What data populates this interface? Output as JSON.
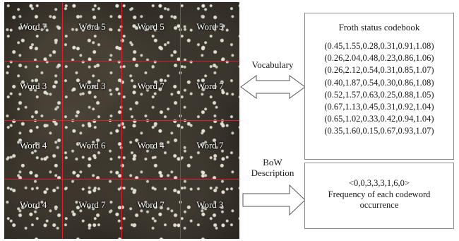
{
  "image_grid": {
    "rows": [
      [
        "Word 7",
        "Word 5",
        "Word 5",
        "Word 5"
      ],
      [
        "Word 3",
        "Word 3",
        "Word 7",
        "Word 7"
      ],
      [
        "Word 4",
        "Word 6",
        "Word 4",
        "Word 7"
      ],
      [
        "Word 4",
        "Word 7",
        "Word 7",
        "Word 3"
      ]
    ],
    "grid_color": "#e0202a"
  },
  "vocabulary_label": "Vocabulary",
  "bow_label_line1": "BoW",
  "bow_label_line2": "Description",
  "codebook": {
    "title": "Froth status codebook",
    "entries": [
      "(0.45,1.55,0.28,0.31,0.91,1.08)",
      "(0.26,2.04,0.48,0.23,0.86,1.06)",
      "(0.26,2.12,0.54,0.31,0.85,1.07)",
      "(0.40,1.87,0.54,0.30,0.86,1.08)",
      "(0.52,1.57,0.63,0.25,0.88,1.05)",
      "(0.67,1.13,0.45,0.31,0.92,1.04)",
      "(0.65,1.02,0.33,0.42,0.94,1.04)",
      "(0.35,1.60,0.15,0.67,0.93,1.07)"
    ]
  },
  "bow_description": {
    "vector": "<0,0,3,3,3,1,6,0>",
    "caption": "Frequency of each codeword occurrence"
  }
}
